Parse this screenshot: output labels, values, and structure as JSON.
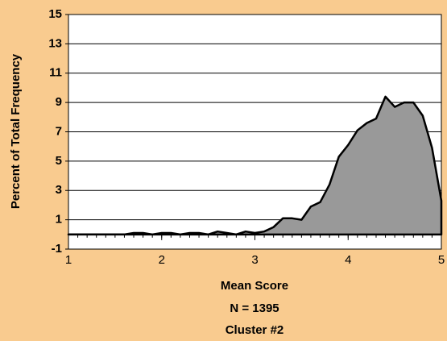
{
  "chart_data": {
    "type": "area",
    "ylabel": "Percent of Total Frequency",
    "xlabel": "Mean Score",
    "caption": [
      "N = 1395",
      "Cluster #2"
    ],
    "x": [
      1.0,
      1.1,
      1.2,
      1.3,
      1.4,
      1.5,
      1.6,
      1.7,
      1.8,
      1.9,
      2.0,
      2.1,
      2.2,
      2.3,
      2.4,
      2.5,
      2.6,
      2.7,
      2.8,
      2.9,
      3.0,
      3.1,
      3.2,
      3.3,
      3.4,
      3.5,
      3.6,
      3.7,
      3.8,
      3.9,
      4.0,
      4.1,
      4.2,
      4.3,
      4.4,
      4.5,
      4.6,
      4.7,
      4.8,
      4.9,
      5.0
    ],
    "values": [
      0,
      0,
      0,
      0,
      0,
      0,
      0,
      0.1,
      0.1,
      0,
      0.1,
      0.1,
      0,
      0.1,
      0.1,
      0,
      0.2,
      0.1,
      0,
      0.2,
      0.1,
      0.2,
      0.5,
      1.1,
      1.1,
      1.0,
      1.9,
      2.2,
      3.4,
      5.3,
      6.1,
      7.1,
      7.6,
      7.9,
      9.4,
      8.7,
      9.0,
      9.0,
      8.1,
      5.9,
      2.3
    ],
    "color": "#999999",
    "xlim": [
      1,
      5
    ],
    "xticks": [
      1,
      2,
      3,
      4,
      5
    ],
    "ylim": [
      -1,
      15
    ],
    "yticks": [
      -1,
      1,
      3,
      5,
      7,
      9,
      11,
      13,
      15
    ],
    "grid": true
  }
}
